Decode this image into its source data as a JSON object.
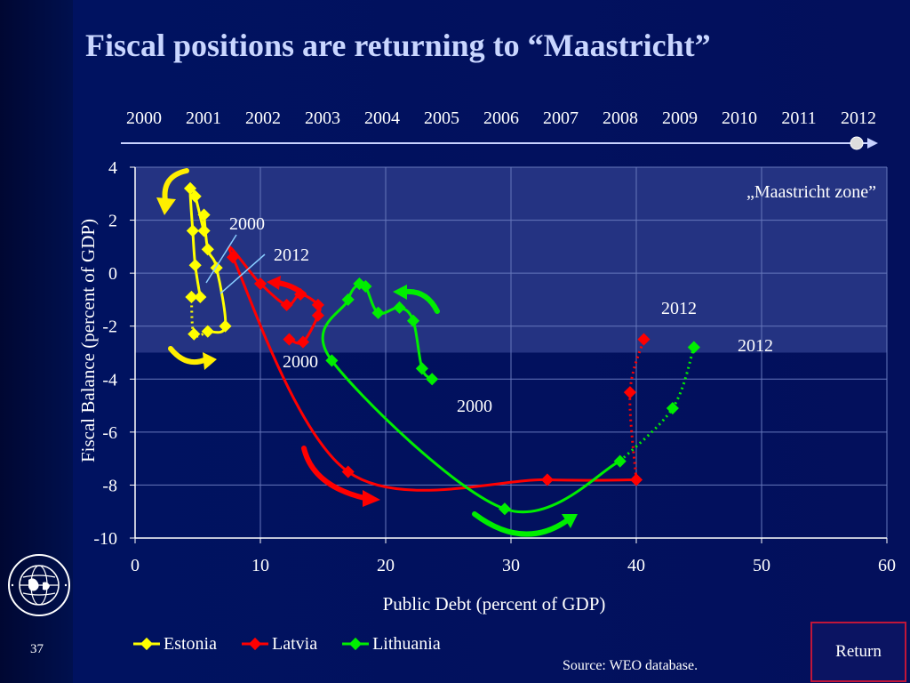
{
  "slide": {
    "title": "Fiscal positions are returning to “Maastricht”",
    "number": "37",
    "source": "Source: WEO database.",
    "return_label": "Return",
    "logo_text": "INTERNATIONAL MONETARY FUND"
  },
  "colors": {
    "background": "#03105c",
    "title": "#c9d6ff",
    "maastricht_zone": "#2a3a88",
    "Estonia": "#ffff00",
    "Latvia": "#ff0000",
    "Lithuania": "#00ee00",
    "arrow_Estonia": "#ffee00",
    "return_border": "#c0163a"
  },
  "timeline": {
    "years": [
      "2000",
      "2001",
      "2002",
      "2003",
      "2004",
      "2005",
      "2006",
      "2007",
      "2008",
      "2009",
      "2010",
      "2011",
      "2012"
    ]
  },
  "chart_data": {
    "type": "scatter",
    "title": "",
    "xlabel": "Public Debt (percent of GDP)",
    "ylabel": "Fiscal Balance (percent of GDP)",
    "xlim": [
      0,
      60
    ],
    "ylim": [
      -10,
      4
    ],
    "xticks": [
      0,
      10,
      20,
      30,
      40,
      50,
      60
    ],
    "yticks": [
      4,
      2,
      0,
      -2,
      -4,
      -6,
      -8,
      -10
    ],
    "grid": true,
    "legend_position": "bottom",
    "zone": {
      "label": "„Maastricht zone”",
      "x_range": [
        0,
        60
      ],
      "y_range": [
        -3,
        4
      ]
    },
    "series": [
      {
        "name": "Estonia",
        "x": [
          5.2,
          4.8,
          4.6,
          4.4,
          4.8,
          5.5,
          5.5,
          5.8,
          6.5,
          7.2,
          5.8,
          4.7,
          4.5
        ],
        "y": [
          -0.9,
          0.3,
          1.6,
          3.2,
          2.9,
          1.6,
          2.2,
          0.9,
          0.2,
          -2.0,
          -2.2,
          -2.3,
          -0.9
        ],
        "dotted_from_index": 10,
        "label_2000": "2000",
        "label_2012": "2012"
      },
      {
        "name": "Latvia",
        "x": [
          12.3,
          13.4,
          14.6,
          14.6,
          13.2,
          12.1,
          10.0,
          7.8,
          17.0,
          32.9,
          40.0,
          39.5,
          40.6
        ],
        "y": [
          -2.5,
          -2.6,
          -1.6,
          -1.2,
          -0.8,
          -1.2,
          -0.4,
          0.6,
          -7.5,
          -7.8,
          -7.8,
          -4.5,
          -2.5
        ],
        "dotted_from_index": 10,
        "label_2000": "2000",
        "label_2012": "2012"
      },
      {
        "name": "Lithuania",
        "x": [
          23.7,
          22.9,
          22.2,
          21.1,
          19.4,
          18.4,
          17.9,
          17.0,
          15.7,
          29.5,
          38.7,
          42.9,
          44.6
        ],
        "y": [
          -4.0,
          -3.6,
          -1.8,
          -1.3,
          -1.5,
          -0.5,
          -0.4,
          -1.0,
          -3.3,
          -8.9,
          -7.1,
          -5.1,
          -2.8
        ],
        "dotted_from_index": 10,
        "label_2000": "2000",
        "label_2012": "2012"
      }
    ]
  }
}
